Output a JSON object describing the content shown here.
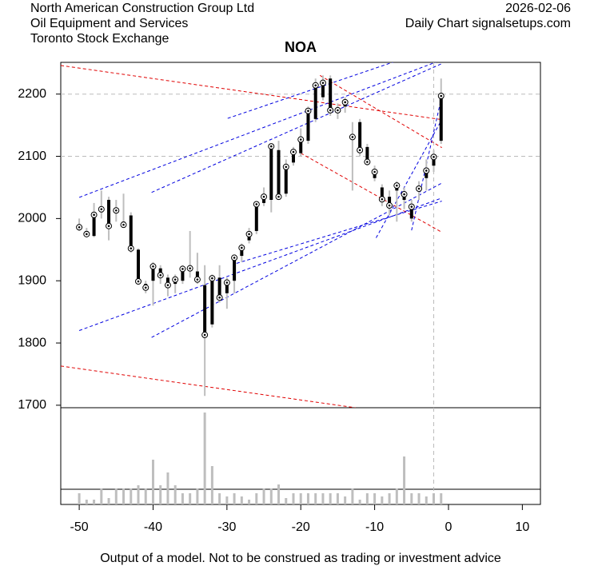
{
  "chart_data": {
    "type": "candlestick",
    "title": "NOA",
    "header_left": [
      "North American Construction Group Ltd",
      "Oil Equipment and Services",
      "Toronto Stock Exchange"
    ],
    "header_right": [
      "2026-02-06",
      "Daily Chart signalsetups.com"
    ],
    "footer": "Output of a model. Not to be construed as trading or investment advice",
    "x": [
      -50,
      -49,
      -48,
      -47,
      -46,
      -45,
      -44,
      -43,
      -42,
      -41,
      -40,
      -39,
      -38,
      -37,
      -36,
      -35,
      -34,
      -33,
      -32,
      -31,
      -30,
      -29,
      -28,
      -27,
      -26,
      -25,
      -24,
      -23,
      -22,
      -21,
      -20,
      -19,
      -18,
      -17,
      -16,
      -15,
      -14,
      -13,
      -12,
      -11,
      -10,
      -9,
      -8,
      -7,
      -6,
      -5,
      -4,
      -3,
      -2,
      -1
    ],
    "open": [
      1990,
      1980,
      1972,
      2010,
      2030,
      2010,
      1995,
      2005,
      1950,
      1895,
      1900,
      1920,
      1905,
      1895,
      1900,
      1920,
      1915,
      1893,
      1830,
      1905,
      1880,
      1900,
      1940,
      1965,
      1980,
      2025,
      2030,
      2110,
      2040,
      2090,
      2105,
      2125,
      2160,
      2195,
      2225,
      2170,
      2180,
      2130,
      2155,
      2115,
      2065,
      2050,
      2035,
      2045,
      2030,
      2000,
      2050,
      2065,
      2085,
      2125
    ],
    "high": [
      2000,
      1985,
      2025,
      2045,
      2035,
      2030,
      2040,
      2010,
      1952,
      1900,
      1930,
      1925,
      1910,
      1910,
      1925,
      1980,
      1945,
      1925,
      1910,
      1925,
      1905,
      1940,
      1960,
      1985,
      2025,
      2050,
      2120,
      2125,
      2095,
      2115,
      2145,
      2180,
      2225,
      2230,
      2230,
      2185,
      2195,
      2155,
      2160,
      2120,
      2085,
      2055,
      2045,
      2060,
      2050,
      2030,
      2060,
      2095,
      2110,
      2225
    ],
    "low": [
      1980,
      1970,
      1970,
      2000,
      1965,
      1995,
      1985,
      1945,
      1895,
      1880,
      1860,
      1895,
      1875,
      1880,
      1895,
      1905,
      1895,
      1715,
      1825,
      1865,
      1855,
      1880,
      1930,
      1960,
      1975,
      2020,
      2010,
      2030,
      2035,
      2085,
      2100,
      2120,
      2155,
      2190,
      2165,
      2160,
      2170,
      2045,
      2100,
      2085,
      2060,
      2020,
      2005,
      1995,
      2015,
      1995,
      2030,
      2045,
      2075,
      2120
    ],
    "close": [
      1986,
      1975,
      2006,
      2015,
      1988,
      2013,
      1990,
      1952,
      1899,
      1889,
      1923,
      1909,
      1893,
      1902,
      1919,
      1920,
      1902,
      1813,
      1904,
      1873,
      1897,
      1937,
      1953,
      1975,
      2023,
      2035,
      2116,
      2035,
      2083,
      2107,
      2127,
      2173,
      2214,
      2218,
      2174,
      2174,
      2187,
      2131,
      2110,
      2091,
      2075,
      2031,
      2021,
      2053,
      2039,
      2019,
      2048,
      2077,
      2099,
      2197
    ],
    "volume": [
      14,
      6,
      6,
      20,
      8,
      20,
      20,
      20,
      24,
      20,
      56,
      24,
      40,
      24,
      14,
      14,
      20,
      115,
      48,
      14,
      10,
      14,
      10,
      6,
      14,
      20,
      20,
      25,
      8,
      14,
      14,
      14,
      14,
      14,
      14,
      14,
      10,
      20,
      6,
      14,
      14,
      10,
      14,
      20,
      60,
      14,
      14,
      10,
      14,
      14
    ],
    "wick_color": "#bebebe",
    "body_color": "#000000",
    "volume_color": "#bebebe",
    "trendlines": [
      {
        "color": "#e00000",
        "x": [
          -52.5,
          -0.9
        ],
        "y": [
          2246,
          2159
        ]
      },
      {
        "color": "#e00000",
        "x": [
          -52.5,
          -12.6
        ],
        "y": [
          1763,
          1696
        ]
      },
      {
        "color": "#e00000",
        "x": [
          -20,
          -0.9
        ],
        "y": [
          2105,
          1978
        ]
      },
      {
        "color": "#e00000",
        "x": [
          -17.4,
          -0.9
        ],
        "y": [
          2230,
          2114
        ]
      },
      {
        "color": "#0000e0",
        "x": [
          -50,
          -0.9
        ],
        "y": [
          2034,
          2255
        ]
      },
      {
        "color": "#0000e0",
        "x": [
          -40.2,
          -0.9
        ],
        "y": [
          2042,
          2249
        ]
      },
      {
        "color": "#0000e0",
        "x": [
          -29.9,
          -6.6
        ],
        "y": [
          2161,
          2255
        ]
      },
      {
        "color": "#0000e0",
        "x": [
          -50,
          -0.9
        ],
        "y": [
          1820,
          2033
        ]
      },
      {
        "color": "#0000e0",
        "x": [
          -40.2,
          -0.9
        ],
        "y": [
          1809,
          2057
        ]
      },
      {
        "color": "#0000e0",
        "x": [
          -9.8,
          -0.9
        ],
        "y": [
          1969,
          2159
        ]
      },
      {
        "color": "#0000e0",
        "x": [
          -5,
          -0.9
        ],
        "y": [
          1981,
          2197
        ]
      },
      {
        "color": "#0000e0",
        "x": [
          -28.7,
          -0.9
        ],
        "y": [
          1928,
          2028
        ]
      }
    ],
    "grid_y": [
      2100,
      2200
    ],
    "marker_x": -2,
    "xlim": [
      -52.5,
      12.45
    ],
    "ylim": [
      1696,
      2251
    ],
    "xticks": [
      -50,
      -40,
      -30,
      -20,
      -10,
      0,
      10
    ],
    "yticks": [
      1700,
      1800,
      1900,
      2000,
      2100,
      2200
    ]
  }
}
